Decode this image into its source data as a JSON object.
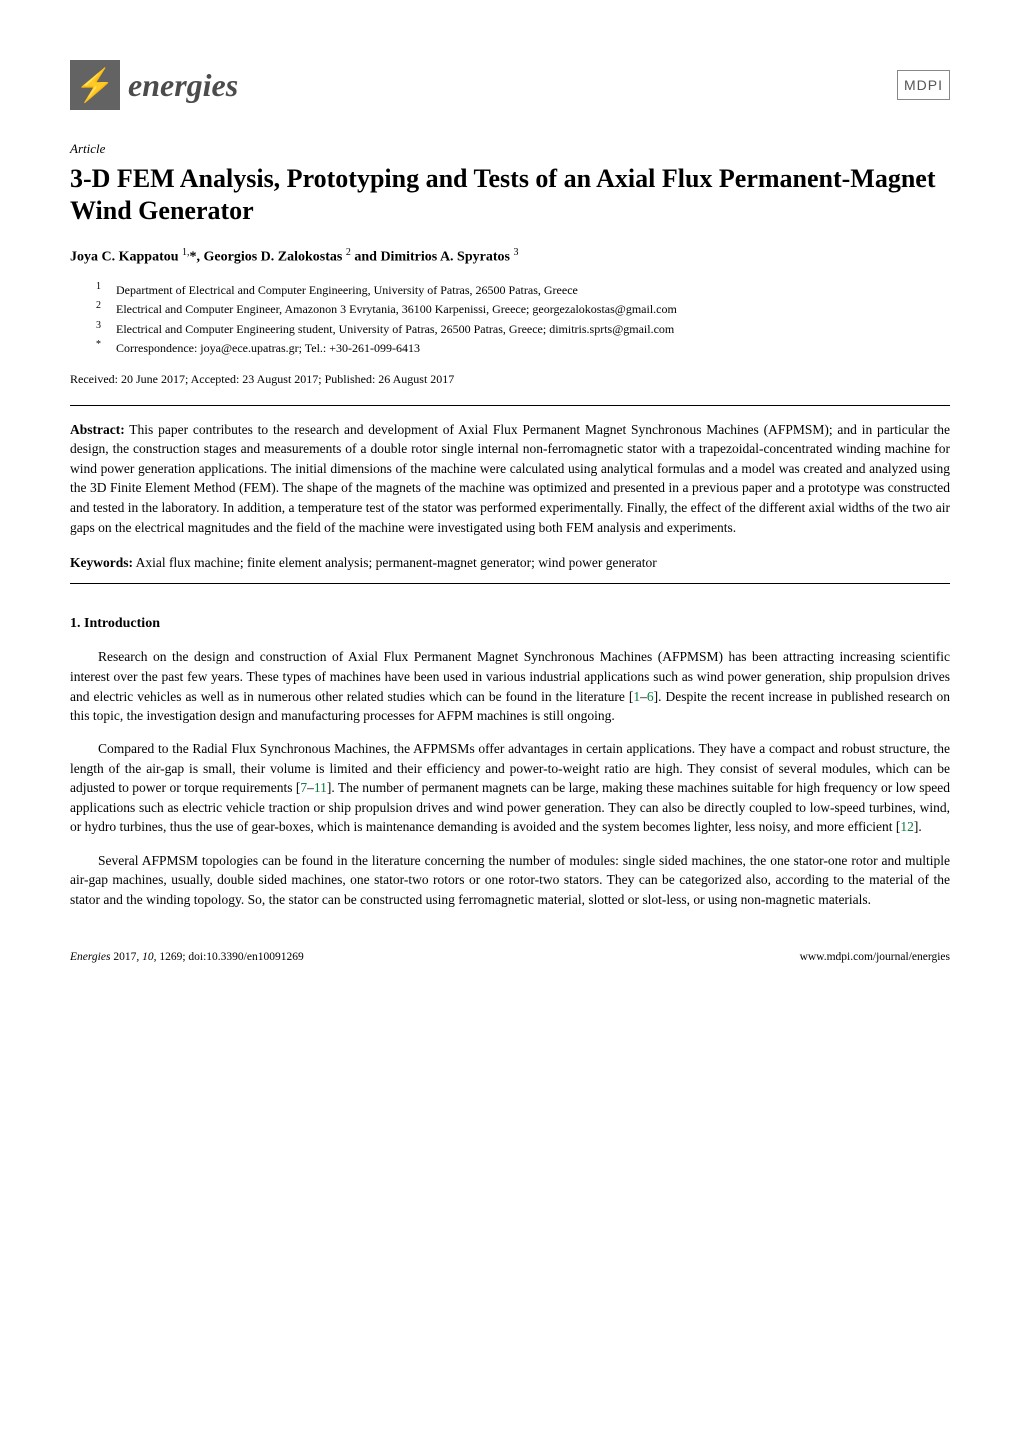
{
  "journal": {
    "logo_text": "energies",
    "publisher": "MDPI"
  },
  "article_type": "Article",
  "title": "3-D FEM Analysis, Prototyping and Tests of an Axial Flux Permanent-Magnet Wind Generator",
  "authors_line": "Joya C. Kappatou 1,*, Georgios D. Zalokostas 2 and Dimitrios A. Spyratos 3",
  "affiliations": [
    {
      "num": "1",
      "text": "Department of Electrical and Computer Engineering, University of Patras, 26500 Patras, Greece"
    },
    {
      "num": "2",
      "text": "Electrical and Computer Engineer, Amazonon 3 Evrytania, 36100 Karpenissi, Greece; georgezalokostas@gmail.com"
    },
    {
      "num": "3",
      "text": "Electrical and Computer Engineering student, University of Patras, 26500 Patras, Greece; dimitris.sprts@gmail.com"
    },
    {
      "num": "*",
      "text": "Correspondence: joya@ece.upatras.gr; Tel.: +30-261-099-6413"
    }
  ],
  "dates": "Received: 20 June 2017; Accepted: 23 August 2017; Published: 26 August 2017",
  "abstract_label": "Abstract:",
  "abstract": "This paper contributes to the research and development of Axial Flux Permanent Magnet Synchronous Machines (AFPMSM); and in particular the design, the construction stages and measurements of a double rotor single internal non-ferromagnetic stator with a trapezoidal-concentrated winding machine for wind power generation applications. The initial dimensions of the machine were calculated using analytical formulas and a model was created and analyzed using the 3D Finite Element Method (FEM). The shape of the magnets of the machine was optimized and presented in a previous paper and a prototype was constructed and tested in the laboratory. In addition, a temperature test of the stator was performed experimentally. Finally, the effect of the different axial widths of the two air gaps on the electrical magnitudes and the field of the machine were investigated using both FEM analysis and experiments.",
  "keywords_label": "Keywords:",
  "keywords": "Axial flux machine; finite element analysis; permanent-magnet generator; wind power generator",
  "section1_heading": "1. Introduction",
  "body": {
    "p1a": "Research on the design and construction of Axial Flux Permanent Magnet Synchronous Machines (AFPMSM) has been attracting increasing scientific interest over the past few years. These types of machines have been used in various industrial applications such as wind power generation, ship propulsion drives and electric vehicles as well as in numerous other related studies which can be found in the literature [",
    "c1": "1",
    "dash1": "–",
    "c2": "6",
    "p1b": "]. Despite the recent increase in published research on this topic, the investigation design and manufacturing processes for AFPM machines is still ongoing.",
    "p2a": "Compared to the Radial Flux Synchronous Machines, the AFPMSMs offer advantages in certain applications. They have a compact and robust structure, the length of the air-gap is small, their volume is limited and their efficiency and power-to-weight ratio are high. They consist of several modules, which can be adjusted to power or torque requirements [",
    "c3": "7",
    "dash2": "–",
    "c4": "11",
    "p2b": "]. The number of permanent magnets can be large, making these machines suitable for high frequency or low speed applications such as electric vehicle traction or ship propulsion drives and wind power generation. They can also be directly coupled to low-speed turbines, wind, or hydro turbines, thus the use of gear-boxes, which is maintenance demanding is avoided and the system becomes lighter, less noisy, and more efficient [",
    "c5": "12",
    "p2c": "].",
    "p3": "Several AFPMSM topologies can be found in the literature concerning the number of modules: single sided machines, the one stator-one rotor and multiple air-gap machines, usually, double sided machines, one stator-two rotors or one rotor-two stators. They can be categorized also, according to the material of the stator and the winding topology. So, the stator can be constructed using ferromagnetic material, slotted or slot-less, or using non-magnetic materials."
  },
  "footer": {
    "left_journal": "Energies ",
    "left_year": "2017",
    "left_vol": ", 10",
    "left_rest": ", 1269; doi:10.3390/en10091269",
    "right": "www.mdpi.com/journal/energies"
  },
  "colors": {
    "cite": "#0b7a3b",
    "logo_bg": "#636363",
    "bolt": "#d9861a"
  }
}
